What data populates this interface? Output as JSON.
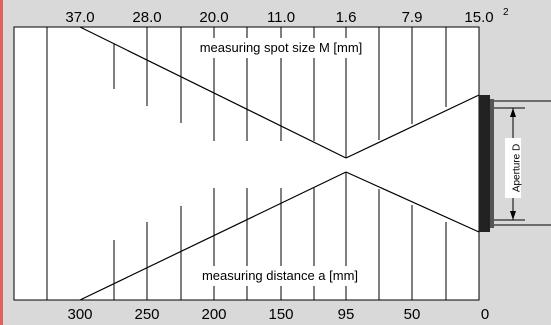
{
  "top_scale": {
    "values": [
      "37.0",
      "28.0",
      "20.0",
      "11.0",
      "1.6",
      "7.9",
      "15.0"
    ],
    "superscript": "2"
  },
  "bottom_scale": {
    "values": [
      "300",
      "250",
      "200",
      "150",
      "95",
      "50",
      "0"
    ]
  },
  "labels": {
    "spot_size": "measuring spot size M [mm]",
    "distance": "measuring distance a [mm]",
    "aperture": "Aperture D"
  },
  "colors": {
    "background": "#d9d9d9",
    "panel": "#ffffff",
    "lens": "#222222",
    "left_strip": "#e06060"
  }
}
